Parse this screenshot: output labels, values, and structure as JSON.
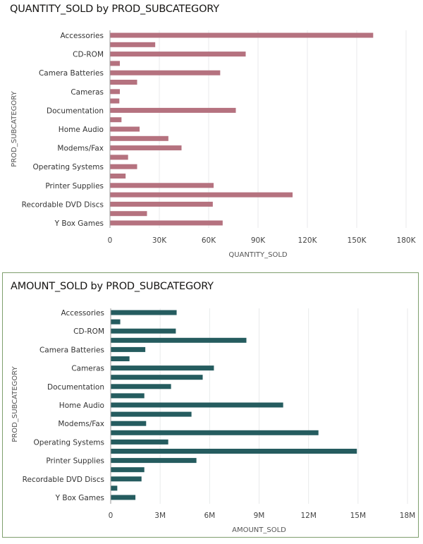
{
  "colors": {
    "quantity_bar": "#b5727f",
    "amount_bar": "#255c5f",
    "panel_border": "#7f9f6e",
    "gridline": "#e8eaeb",
    "axis": "#9a9a9a"
  },
  "chart_data": [
    {
      "type": "bar",
      "orientation": "horizontal",
      "title": "QUANTITY_SOLD by PROD_SUBCATEGORY",
      "xlabel": "QUANTITY_SOLD",
      "ylabel": "PROD_SUBCATEGORY",
      "xlim": [
        0,
        180000
      ],
      "xticks": [
        0,
        30000,
        60000,
        90000,
        120000,
        150000,
        180000
      ],
      "xtick_labels": [
        "0",
        "30K",
        "60K",
        "90K",
        "120K",
        "150K",
        "180K"
      ],
      "grid": true,
      "category_labels": [
        "Accessories",
        "",
        "CD-ROM",
        "",
        "Camera Batteries",
        "",
        "Cameras",
        "",
        "Documentation",
        "",
        "Home Audio",
        "",
        "Modems/Fax",
        "",
        "Operating Systems",
        "",
        "Printer Supplies",
        "",
        "Recordable DVD Discs",
        "",
        "Y Box Games"
      ],
      "values": [
        160000,
        27500,
        82500,
        6000,
        67000,
        16500,
        6000,
        5700,
        76500,
        7000,
        18000,
        35500,
        43500,
        11000,
        16500,
        9500,
        63000,
        111000,
        62500,
        22500,
        68500
      ]
    },
    {
      "type": "bar",
      "orientation": "horizontal",
      "title": "AMOUNT_SOLD by PROD_SUBCATEGORY",
      "xlabel": "AMOUNT_SOLD",
      "ylabel": "PROD_SUBCATEGORY",
      "xlim": [
        0,
        18000000
      ],
      "xticks": [
        0,
        3000000,
        6000000,
        9000000,
        12000000,
        15000000,
        18000000
      ],
      "xtick_labels": [
        "0",
        "3M",
        "6M",
        "9M",
        "12M",
        "15M",
        "18M"
      ],
      "grid": true,
      "category_labels": [
        "Accessories",
        "",
        "CD-ROM",
        "",
        "Camera Batteries",
        "",
        "Cameras",
        "",
        "Documentation",
        "",
        "Home Audio",
        "",
        "Modems/Fax",
        "",
        "Operating Systems",
        "",
        "Printer Supplies",
        "",
        "Recordable DVD Discs",
        "",
        "Y Box Games"
      ],
      "values": [
        4000000,
        580000,
        3950000,
        8230000,
        2100000,
        1140000,
        6260000,
        5580000,
        3660000,
        2040000,
        10460000,
        4900000,
        2150000,
        12600000,
        3490000,
        14930000,
        5200000,
        2040000,
        1870000,
        400000,
        1500000
      ]
    }
  ]
}
